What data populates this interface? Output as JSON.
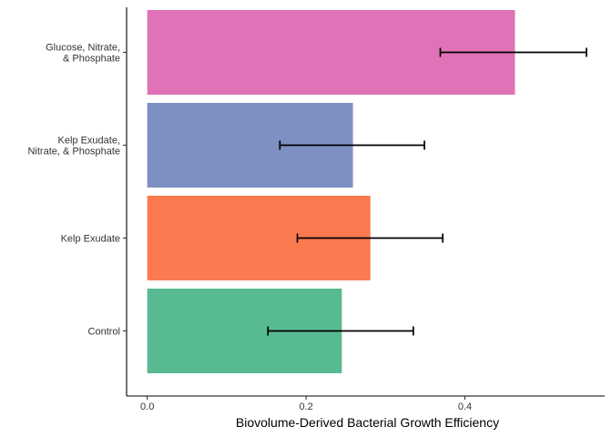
{
  "chart_data": {
    "type": "bar",
    "orientation": "horizontal",
    "xlabel": "Biovolume-Derived Bacterial Growth Efficiency",
    "ylabel": "",
    "title": "",
    "xlim": [
      -0.026,
      0.576
    ],
    "xticks": [
      0.0,
      0.2,
      0.4
    ],
    "xtick_labels": [
      "0.0",
      "0.2",
      "0.4"
    ],
    "grid": false,
    "legend": "none",
    "categories": [
      {
        "label": [
          "Control"
        ],
        "value": 0.245,
        "err_low": 0.152,
        "err_high": 0.335,
        "color": "#57BA91"
      },
      {
        "label": [
          "Kelp Exudate"
        ],
        "value": 0.281,
        "err_low": 0.189,
        "err_high": 0.372,
        "color": "#FC7A4F"
      },
      {
        "label": [
          "Kelp Exudate,",
          "Nitrate, & Phosphate"
        ],
        "value": 0.259,
        "err_low": 0.167,
        "err_high": 0.349,
        "color": "#7E8FC2"
      },
      {
        "label": [
          "Glucose, Nitrate,",
          "& Phosphate"
        ],
        "value": 0.463,
        "err_low": 0.369,
        "err_high": 0.553,
        "color": "#E072B7"
      }
    ]
  }
}
